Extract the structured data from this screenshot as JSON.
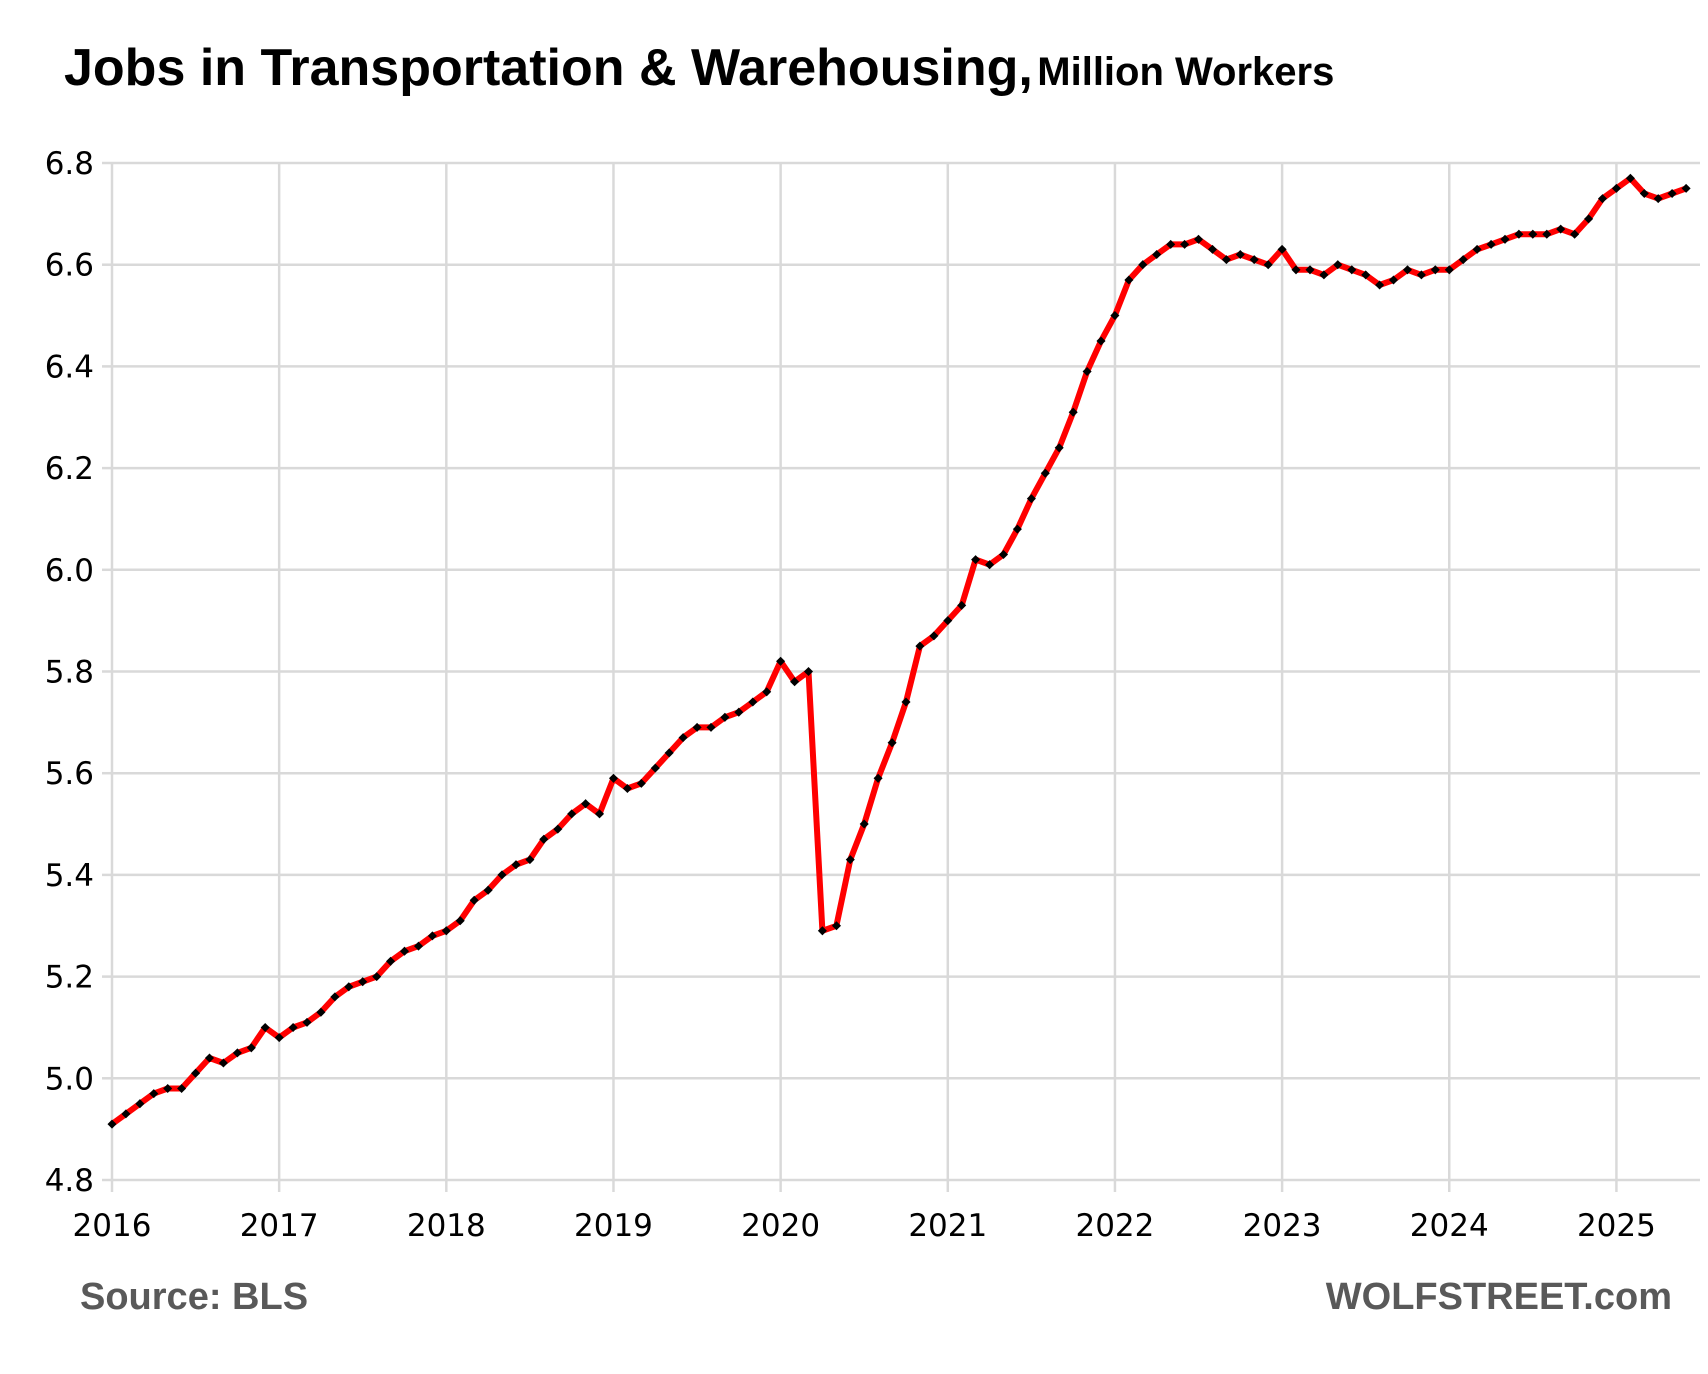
{
  "header": {
    "title_main": "Jobs in Transportation & Warehousing,",
    "title_unit": "Million Workers"
  },
  "footer": {
    "source": "Source: BLS",
    "brand": "WOLFSTREET.com"
  },
  "colors": {
    "line": "#ff0000",
    "markers": "#000000",
    "grid": "#d9d9d9"
  },
  "chart_data": {
    "type": "line",
    "title": "Jobs in Transportation & Warehousing, Million Workers",
    "xlabel": "",
    "ylabel": "",
    "x_ticks": [
      "2016",
      "2017",
      "2018",
      "2019",
      "2020",
      "2021",
      "2022",
      "2023",
      "2024",
      "2025"
    ],
    "y_ticks": [
      "4.8",
      "5.0",
      "5.2",
      "5.4",
      "5.6",
      "5.8",
      "6.0",
      "6.2",
      "6.4",
      "6.6",
      "6.8"
    ],
    "xlim": [
      2016,
      2025.5
    ],
    "ylim": [
      4.8,
      6.8
    ],
    "grid": true,
    "series": [
      {
        "start": "2016-01",
        "frequency": "monthly",
        "values": [
          4.91,
          4.93,
          4.95,
          4.97,
          4.98,
          4.98,
          5.01,
          5.04,
          5.03,
          5.05,
          5.06,
          5.1,
          5.08,
          5.1,
          5.11,
          5.13,
          5.16,
          5.18,
          5.19,
          5.2,
          5.23,
          5.25,
          5.26,
          5.28,
          5.29,
          5.31,
          5.35,
          5.37,
          5.4,
          5.42,
          5.43,
          5.47,
          5.49,
          5.52,
          5.54,
          5.52,
          5.59,
          5.57,
          5.58,
          5.61,
          5.64,
          5.67,
          5.69,
          5.69,
          5.71,
          5.72,
          5.74,
          5.76,
          5.82,
          5.78,
          5.8,
          5.29,
          5.3,
          5.43,
          5.5,
          5.59,
          5.66,
          5.74,
          5.85,
          5.87,
          5.9,
          5.93,
          6.02,
          6.01,
          6.03,
          6.08,
          6.14,
          6.19,
          6.24,
          6.31,
          6.39,
          6.45,
          6.5,
          6.57,
          6.6,
          6.62,
          6.64,
          6.64,
          6.65,
          6.63,
          6.61,
          6.62,
          6.61,
          6.6,
          6.63,
          6.59,
          6.59,
          6.58,
          6.6,
          6.59,
          6.58,
          6.56,
          6.57,
          6.59,
          6.58,
          6.59,
          6.59,
          6.61,
          6.63,
          6.64,
          6.65,
          6.66,
          6.66,
          6.66,
          6.67,
          6.66,
          6.69,
          6.73,
          6.75,
          6.77,
          6.74,
          6.73,
          6.74,
          6.75
        ]
      }
    ]
  }
}
